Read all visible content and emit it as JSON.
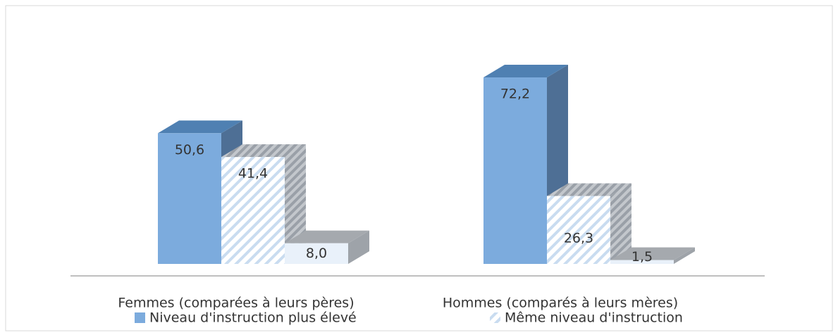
{
  "chart_data": {
    "type": "bar3d",
    "categories": [
      "Femmes (comparées à leurs pères)",
      "Hommes (comparés à leurs mères)"
    ],
    "series": [
      {
        "name": "Niveau d'instruction plus élevé",
        "color": "#7cabdd",
        "values": [
          50.6,
          72.2
        ],
        "value_labels": [
          "50,6",
          "72,2"
        ]
      },
      {
        "name": "Même niveau d'instruction",
        "color": "#c9dcf0",
        "values": [
          41.4,
          26.3
        ],
        "value_labels": [
          "41,4",
          "26,3"
        ]
      },
      {
        "color": "#e9f1fa",
        "values": [
          8.0,
          1.5
        ],
        "value_labels": [
          "8,0",
          "1,5"
        ]
      }
    ],
    "legend": "bottom"
  }
}
